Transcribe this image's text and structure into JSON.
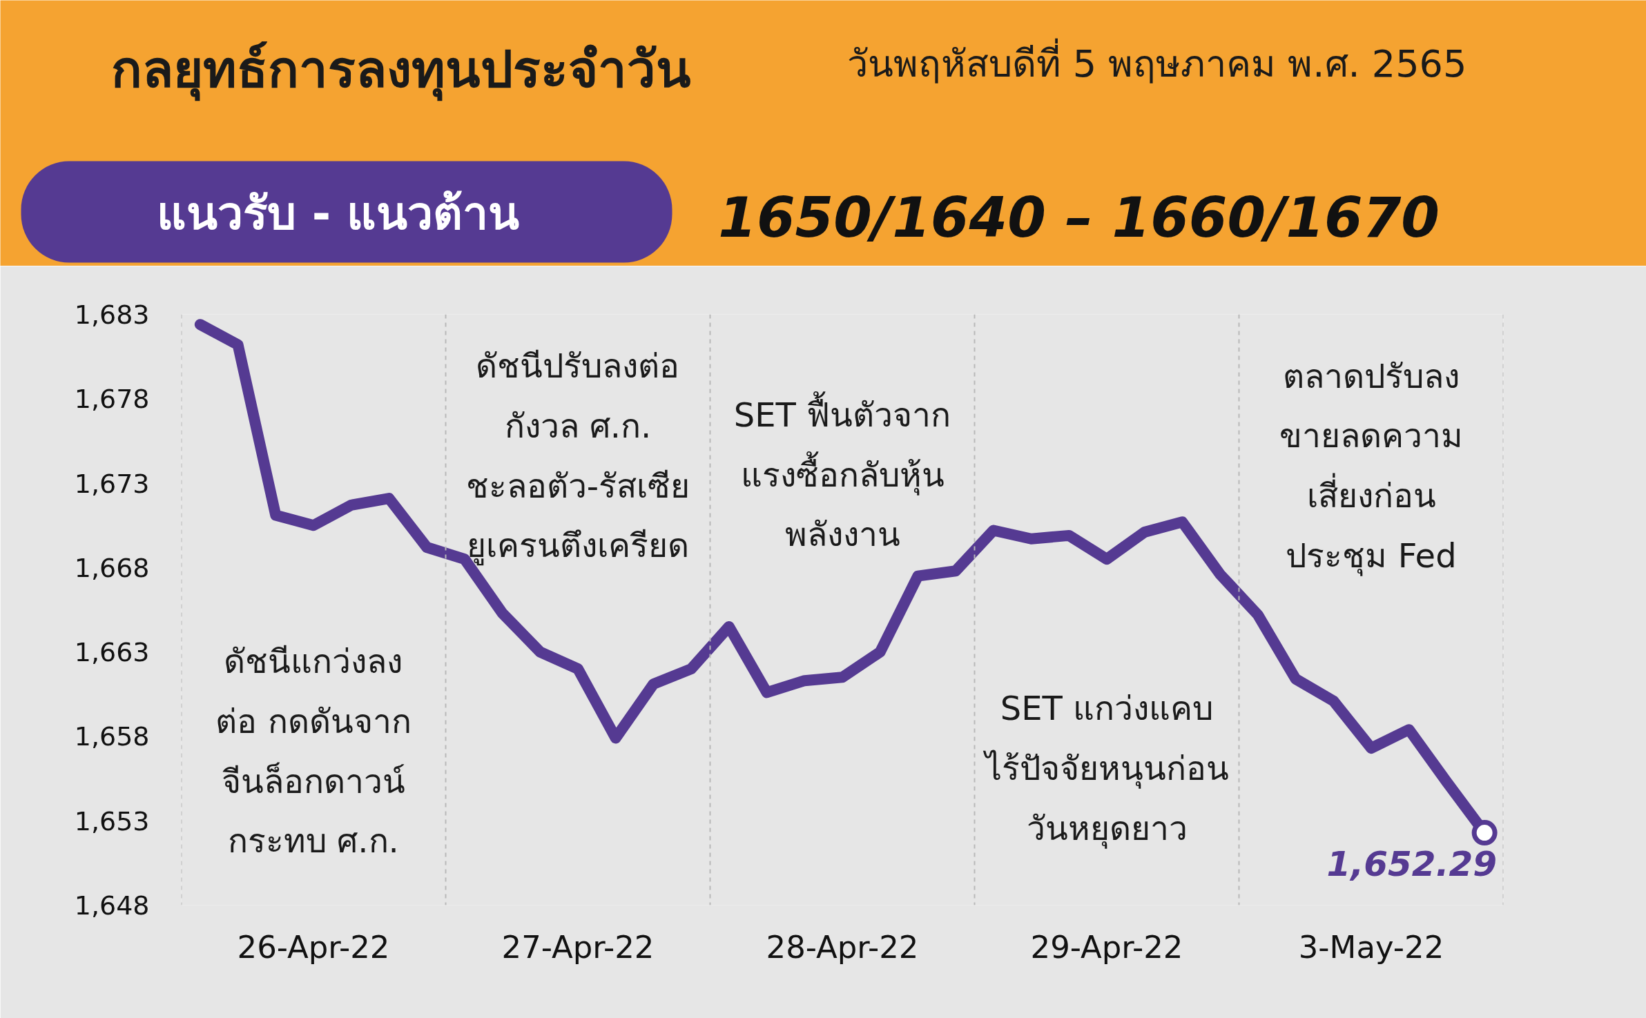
{
  "chart_data": {
    "type": "line",
    "title": "กลยุทธ์การลงทุนประจำวัน",
    "subtitle": "วันพฤหัสบดีที่ 5 พฤษภาคม พ.ศ. 2565",
    "categories": [
      null,
      null,
      null,
      "26-Apr-22",
      null,
      null,
      null,
      null,
      null,
      null,
      "27-Apr-22",
      null,
      null,
      null,
      null,
      null,
      null,
      "28-Apr-22",
      null,
      null,
      null,
      null,
      null,
      null,
      "29-Apr-22",
      null,
      null,
      null,
      null,
      null,
      null,
      "3-May-22",
      null,
      null,
      null
    ],
    "series": [
      {
        "color": "#553a92",
        "values": [
          1682.4,
          1681.2,
          1671.1,
          1670.5,
          1671.7,
          1672.1,
          1669.2,
          1668.5,
          1665.3,
          1663.0,
          1662.0,
          1657.9,
          1661.1,
          1662.0,
          1664.5,
          1660.6,
          1661.3,
          1661.5,
          1663.0,
          1667.5,
          1667.8,
          1670.2,
          1669.7,
          1669.9,
          1668.5,
          1670.1,
          1670.7,
          1667.6,
          1665.2,
          1661.4,
          1660.1,
          1657.3,
          1658.4,
          1655.3,
          1652.29
        ]
      }
    ],
    "ylim": [
      1648,
      1683
    ],
    "yticks": [
      {
        "value": 1648,
        "label": "1,648"
      },
      {
        "value": 1653,
        "label": "1,653"
      },
      {
        "value": 1658,
        "label": "1,658"
      },
      {
        "value": 1663,
        "label": "1,663"
      },
      {
        "value": 1668,
        "label": "1,668"
      },
      {
        "value": 1673,
        "label": "1,673"
      },
      {
        "value": 1678,
        "label": "1,678"
      },
      {
        "value": 1683,
        "label": "1,683"
      }
    ],
    "line_style": "solid",
    "annotations": [
      "แนวรับ - แนวต้าน",
      "1650/1640  –  1660/1670",
      "ดัชนีแกว่งลง\nต่อ กดดันจาก\nจีนล็อกดาวน์\nกระทบ ศ.ก.",
      "ดัชนีปรับลงต่อ\nกังวล ศ.ก.\nชะลอตัว-รัสเซีย\nยูเครนตึงเครียด",
      "SET ฟื้นตัวจาก\nแรงซื้อกลับหุ้น\nพลังงาน",
      "SET แกว่งแคบ\nไร้ปัจจัยหนุนก่อน\nวันหยุดยาว",
      "ตลาดปรับลง\nขายลดความ\nเสี่ยงก่อน\nประชุม Fed",
      "1,652.29"
    ]
  }
}
